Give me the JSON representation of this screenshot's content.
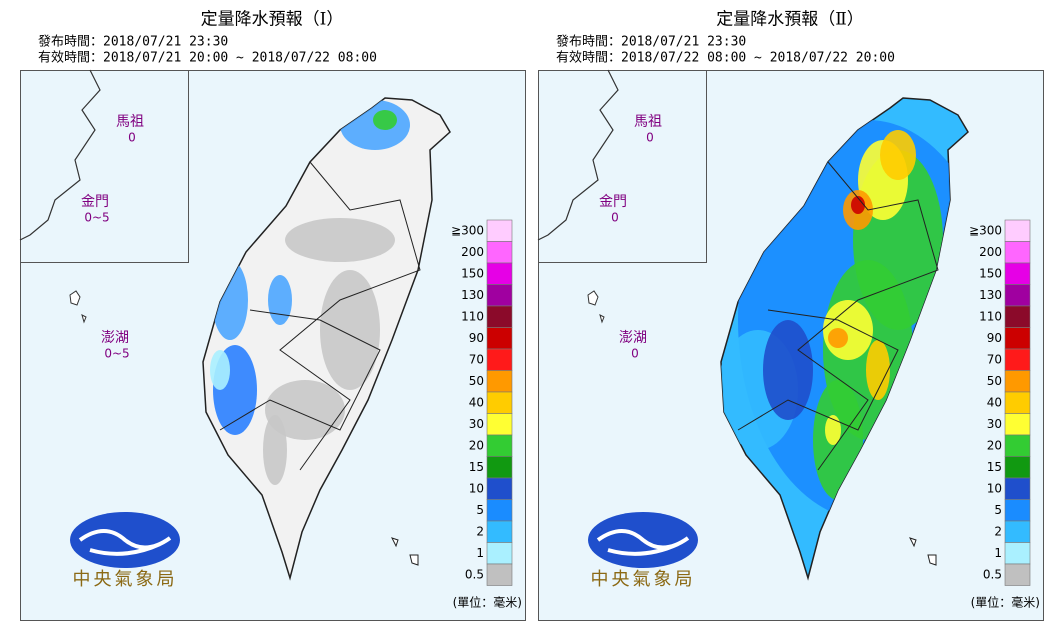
{
  "panels": [
    {
      "title": "定量降水預報（Ⅰ）",
      "issued": "發布時間：2018/07/21 23:30",
      "valid": "有效時間：2018/07/21 20:00 ~ 2018/07/22 08:00",
      "islands": [
        {
          "name": "馬祖",
          "value": "0"
        },
        {
          "name": "金門",
          "value": "0~5"
        },
        {
          "name": "澎湖",
          "value": "0~5"
        }
      ],
      "logo": "中央氣象局"
    },
    {
      "title": "定量降水預報（Ⅱ）",
      "issued": "發布時間：2018/07/21 23:30",
      "valid": "有效時間：2018/07/22 08:00 ~ 2018/07/22 20:00",
      "islands": [
        {
          "name": "馬祖",
          "value": "0"
        },
        {
          "name": "金門",
          "value": "0"
        },
        {
          "name": "澎湖",
          "value": "0"
        }
      ],
      "logo": "中央氣象局"
    }
  ],
  "legend": {
    "items": [
      {
        "label": "≧300",
        "color": "#ffccff"
      },
      {
        "label": "200",
        "color": "#ff66ff"
      },
      {
        "label": "150",
        "color": "#e600e6"
      },
      {
        "label": "130",
        "color": "#a000a0"
      },
      {
        "label": "110",
        "color": "#8b0a2a"
      },
      {
        "label": "90",
        "color": "#cc0000"
      },
      {
        "label": "70",
        "color": "#ff1a1a"
      },
      {
        "label": "50",
        "color": "#ff9900"
      },
      {
        "label": "40",
        "color": "#ffcc00"
      },
      {
        "label": "30",
        "color": "#ffff33"
      },
      {
        "label": "20",
        "color": "#33cc33"
      },
      {
        "label": "15",
        "color": "#119911"
      },
      {
        "label": "10",
        "color": "#1f4fcc"
      },
      {
        "label": "5",
        "color": "#1a8cff"
      },
      {
        "label": "2",
        "color": "#33bbff"
      },
      {
        "label": "1",
        "color": "#aaf0ff"
      },
      {
        "label": "0.5",
        "color": "#c0c0c0"
      }
    ],
    "unit": "(單位：毫米)"
  }
}
